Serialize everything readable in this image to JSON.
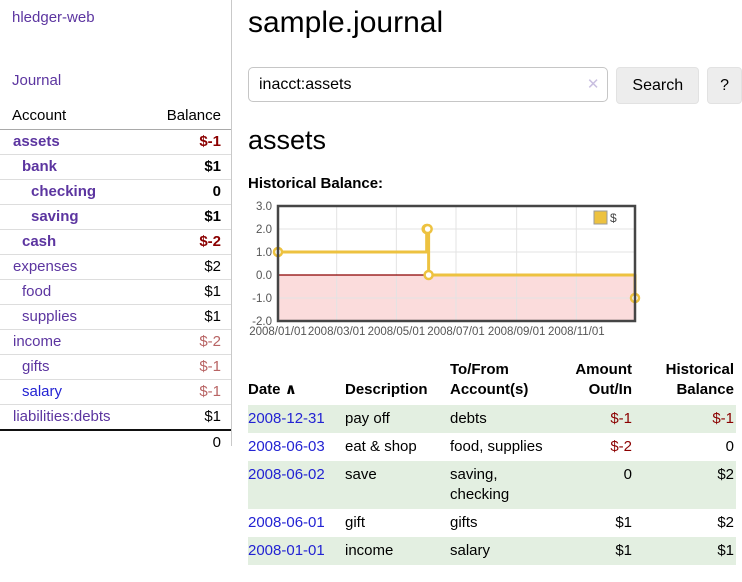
{
  "sidebar": {
    "brand": "hledger-web",
    "nav": {
      "journal": "Journal"
    },
    "accounts_table": {
      "headers": {
        "account": "Account",
        "balance": "Balance"
      },
      "rows": [
        {
          "name": "assets",
          "balance": "$-1",
          "indent": 1,
          "bold": true,
          "name_color": "purple",
          "balance_class": "neg-strong"
        },
        {
          "name": "bank",
          "balance": "$1",
          "indent": 2,
          "bold": true,
          "name_color": "purple",
          "balance_class": "plain"
        },
        {
          "name": "checking",
          "balance": "0",
          "indent": 3,
          "bold": true,
          "name_color": "purple",
          "balance_class": "plain"
        },
        {
          "name": "saving",
          "balance": "$1",
          "indent": 3,
          "bold": true,
          "name_color": "purple",
          "balance_class": "plain"
        },
        {
          "name": "cash",
          "balance": "$-2",
          "indent": 2,
          "bold": true,
          "name_color": "purple",
          "balance_class": "neg-strong"
        },
        {
          "name": "expenses",
          "balance": "$2",
          "indent": 1,
          "bold": false,
          "name_color": "purple",
          "balance_class": "plain"
        },
        {
          "name": "food",
          "balance": "$1",
          "indent": 2,
          "bold": false,
          "name_color": "purple",
          "balance_class": "plain"
        },
        {
          "name": "supplies",
          "balance": "$1",
          "indent": 2,
          "bold": false,
          "name_color": "purple",
          "balance_class": "plain"
        },
        {
          "name": "income",
          "balance": "$-2",
          "indent": 1,
          "bold": false,
          "name_color": "purple",
          "balance_class": "neg-soft"
        },
        {
          "name": "gifts",
          "balance": "$-1",
          "indent": 2,
          "bold": false,
          "name_color": "purple",
          "balance_class": "neg-soft"
        },
        {
          "name": "salary",
          "balance": "$-1",
          "indent": 2,
          "bold": false,
          "name_color": "blue",
          "balance_class": "neg-soft"
        },
        {
          "name": "liabilities:debts",
          "balance": "$1",
          "indent": 1,
          "bold": false,
          "name_color": "purple",
          "balance_class": "plain"
        }
      ],
      "total": "0"
    }
  },
  "main": {
    "title": "sample.journal",
    "search": {
      "query": "inacct:assets",
      "clear_icon": "✕",
      "search_button": "Search",
      "help_button": "?"
    },
    "account_heading": "assets",
    "chart_label": "Historical Balance:",
    "register_table": {
      "headers": {
        "date": "Date",
        "sort_icon": "∧",
        "description": "Description",
        "accounts": "To/From Account(s)",
        "amount": "Amount Out/In",
        "balance": "Historical Balance"
      },
      "rows": [
        {
          "date": "2008-12-31",
          "description": "pay off",
          "accounts": "debts",
          "amount": "$-1",
          "balance": "$-1",
          "amount_class": "neg",
          "balance_class": "neg",
          "shaded": true
        },
        {
          "date": "2008-06-03",
          "description": "eat & shop",
          "accounts": "food, supplies",
          "amount": "$-2",
          "balance": "0",
          "amount_class": "neg",
          "balance_class": "plain",
          "shaded": false
        },
        {
          "date": "2008-06-02",
          "description": "save",
          "accounts": "saving, checking",
          "amount": "0",
          "balance": "$2",
          "amount_class": "plain",
          "balance_class": "plain",
          "shaded": true
        },
        {
          "date": "2008-06-01",
          "description": "gift",
          "accounts": "gifts",
          "amount": "$1",
          "balance": "$2",
          "amount_class": "plain",
          "balance_class": "plain",
          "shaded": false
        },
        {
          "date": "2008-01-01",
          "description": "income",
          "accounts": "salary",
          "amount": "$1",
          "balance": "$1",
          "amount_class": "plain",
          "balance_class": "plain",
          "shaded": true
        }
      ]
    }
  },
  "chart_data": {
    "type": "line",
    "step": true,
    "title": "Historical Balance",
    "series": [
      {
        "name": "$",
        "color": "#edc240",
        "points": [
          [
            "2008-01-01",
            1
          ],
          [
            "2008-06-01",
            2
          ],
          [
            "2008-06-02",
            2
          ],
          [
            "2008-06-03",
            0
          ],
          [
            "2008-12-31",
            -1
          ]
        ]
      }
    ],
    "x_range": [
      "2008-01-01",
      "2008-12-31"
    ],
    "x_tick_labels": [
      "2008/01/01",
      "2008/03/01",
      "2008/05/01",
      "2008/07/01",
      "2008/09/01",
      "2008/11/01"
    ],
    "y_ticks": [
      "3.0",
      "2.0",
      "1.0",
      "0.0",
      "-1.0",
      "-2.0"
    ],
    "ylim": [
      -2,
      3
    ],
    "grid": true,
    "legend_position": "top-right",
    "negative_region": true
  },
  "colors": {
    "link_purple": "#5c35a0",
    "link_blue": "#2323d3",
    "negative_strong": "#8b0000",
    "negative_soft": "#b86464",
    "row_green": "#e3efe1",
    "chart_line": "#edc240",
    "chart_negative_bg": "#fbdcdc",
    "chart_zero_line": "#8b0000",
    "chart_border": "#454545",
    "grid_line": "#e3e3e3"
  }
}
